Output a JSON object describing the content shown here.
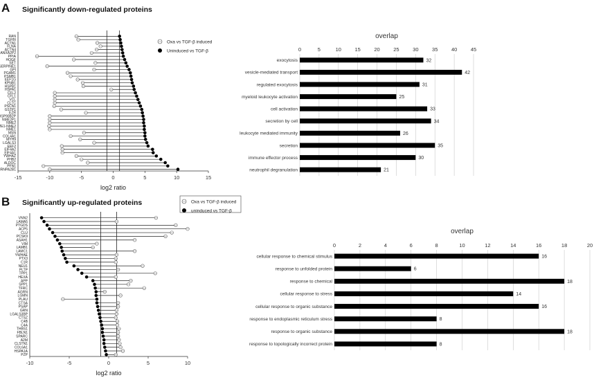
{
  "panels": {
    "A": {
      "letter": "A",
      "title": "Significantly down-regulated proteins"
    },
    "B": {
      "letter": "B",
      "title": "Significantly up-regulated proteins"
    }
  },
  "chart_data": [
    {
      "id": "A_lollipop",
      "type": "scatter",
      "title": "Significantly down-regulated proteins",
      "xlabel": "log2 ratio",
      "xlim": [
        -15,
        15
      ],
      "xticks": [
        -15,
        -10,
        -5,
        0,
        5,
        10,
        15
      ],
      "vlines": [
        -1,
        1
      ],
      "legend": [
        "Oxa vs TGF-β induced",
        "Uninduced vs TGF-β"
      ],
      "legend_position": "top-right",
      "proteins": [
        "RAN",
        "TGFBI",
        "ACTN1",
        "FLNA",
        "ACTN4",
        "ANXA2;ANXA2P2",
        "PPIA",
        "HOGF",
        "SET",
        "SERPINE1",
        "GPI",
        "PGAM1",
        "PSMB1",
        "EEF1G",
        "KPNB1",
        "HSPB1",
        "HSPA1",
        "CFL2",
        "CFL1",
        "VCL",
        "CLTC",
        "PSCN1",
        "GSTP1",
        "EZR",
        "HSP90B2P",
        "NME2P1",
        "NME2",
        "NME1-NME2",
        "NME1",
        "MSN",
        "COL4A1",
        "MYH9",
        "LGALS3",
        "EEF2",
        "EIF4A2",
        "EIF4A1",
        "YWHAZ",
        "PHB2",
        "ALDOC",
        "PFN1",
        "HNRNPA2B1"
      ],
      "series": [
        {
          "name": "Oxa vs TGF-β induced",
          "marker": "open-circle",
          "values": [
            -5.8,
            -5.5,
            -2.5,
            -2.0,
            -2.6,
            -3.4,
            -12.0,
            -6.2,
            -2.8,
            -10.4,
            -3.0,
            -7.2,
            -6.7,
            -5.6,
            -4.8,
            -4.7,
            -0.3,
            -9.2,
            -9.2,
            -9.2,
            -9.2,
            -9.3,
            -8.2,
            -4.3,
            -10.0,
            -10.0,
            -10.0,
            -10.1,
            -10.0,
            -4.6,
            -6.7,
            -5.2,
            -3.0,
            -8.1,
            -8.0,
            -8.0,
            -5.8,
            -5.0,
            -4.0,
            -11.0,
            -10.0
          ]
        },
        {
          "name": "Uninduced vs TGF-β",
          "marker": "filled-circle",
          "values": [
            1.0,
            1.1,
            1.2,
            1.3,
            1.4,
            1.5,
            1.6,
            1.8,
            2.0,
            2.2,
            2.5,
            2.7,
            2.8,
            2.9,
            3.0,
            3.2,
            3.3,
            3.5,
            3.7,
            3.9,
            4.1,
            4.3,
            4.5,
            4.6,
            4.7,
            4.8,
            4.8,
            4.9,
            4.9,
            5.0,
            5.0,
            5.1,
            5.3,
            5.5,
            6.2,
            6.3,
            6.8,
            7.5,
            8.2,
            8.6,
            10.2
          ]
        }
      ]
    },
    {
      "id": "A_overlap",
      "type": "bar",
      "orientation": "horizontal",
      "title": "overlap",
      "xlim": [
        0,
        45
      ],
      "xticks": [
        0,
        5,
        10,
        15,
        20,
        25,
        30,
        35,
        40,
        45
      ],
      "grid": true,
      "categories": [
        "exocytosis",
        "vesicle-mediated transport",
        "regulated exocytosis",
        "myeloid leukocyte activation",
        "cell activation",
        "secretion by cell",
        "leukocyte mediated immunity",
        "secretion",
        "immune effector process",
        "neutrophil degranulation"
      ],
      "values": [
        32,
        42,
        31,
        25,
        33,
        34,
        26,
        35,
        30,
        21
      ]
    },
    {
      "id": "B_lollipop",
      "type": "scatter",
      "title": "Significantly up-regulated proteins",
      "xlabel": "log2 ratio",
      "xlim": [
        -10,
        10
      ],
      "xticks": [
        -10,
        -5,
        0,
        5,
        10
      ],
      "vlines": [
        -1,
        1
      ],
      "legend": [
        "Oxa vs TGF-β induced",
        "uninduced vs TGF-β"
      ],
      "legend_position": "top-right",
      "proteins": [
        "VNN2",
        "LAMA5",
        "PTGDS",
        "ACP5",
        "CLU",
        "PCSK9",
        "ASAH1",
        "VIM",
        "LAMB1",
        "LAMC1",
        "YWHAE",
        "PTX3",
        "C1R",
        "NEU1",
        "PLTP",
        "TPP1",
        "HEXA",
        "APP",
        "SPP1",
        "TFRC",
        "AGRN",
        "LGMN",
        "PLAU",
        "CTSA",
        "PSAP",
        "GRN",
        "LGALS3BP",
        "CTSZ",
        "C4B",
        "C4A",
        "THBS1",
        "FBLN1",
        "SPARC",
        "A2M",
        "CLSTN1",
        "COL6A1",
        "HSPA1A",
        "PZP"
      ],
      "series": [
        {
          "name": "Oxa vs TGF-β induced",
          "marker": "open-circle",
          "values": [
            6.0,
            1.0,
            8.5,
            10.0,
            8.0,
            7.2,
            3.3,
            -1.5,
            -2.0,
            3.3,
            1.0,
            0.9,
            0.9,
            4.3,
            1.2,
            5.9,
            0.9,
            2.8,
            2.5,
            4.5,
            -0.5,
            1.5,
            -5.8,
            1.2,
            1.2,
            1.0,
            1.0,
            0.9,
            1.1,
            1.1,
            1.3,
            1.2,
            1.2,
            1.3,
            1.4,
            1.5,
            1.8,
            0.9
          ]
        },
        {
          "name": "uninduced vs TGF-β",
          "marker": "filled-circle",
          "values": [
            -8.5,
            -8.2,
            -7.8,
            -7.5,
            -7.1,
            -6.8,
            -6.5,
            -6.2,
            -6.0,
            -5.9,
            -5.7,
            -5.5,
            -5.3,
            -4.4,
            -3.9,
            -3.4,
            -2.8,
            -2.0,
            -1.8,
            -1.7,
            -1.6,
            -1.6,
            -1.5,
            -1.5,
            -1.4,
            -1.3,
            -1.2,
            -1.1,
            -1.0,
            -0.9,
            -0.8,
            -0.8,
            -0.7,
            -0.6,
            -0.6,
            -0.5,
            -0.4,
            -0.3
          ]
        }
      ]
    },
    {
      "id": "B_overlap",
      "type": "bar",
      "orientation": "horizontal",
      "title": "overlap",
      "xlim": [
        0,
        20
      ],
      "xticks": [
        0,
        2,
        4,
        6,
        8,
        10,
        12,
        14,
        16,
        18,
        20
      ],
      "grid": true,
      "categories": [
        "cellular response to chemical stimulus",
        "response to unfolded protein",
        "response to chemical",
        "cellular response to stress",
        "cellular response to organic substance",
        "response to endoplasmic reticulum stress",
        "response to organic substance",
        "response to topologically incorrect protein"
      ],
      "values": [
        16,
        6,
        18,
        14,
        16,
        8,
        18,
        8
      ]
    }
  ]
}
